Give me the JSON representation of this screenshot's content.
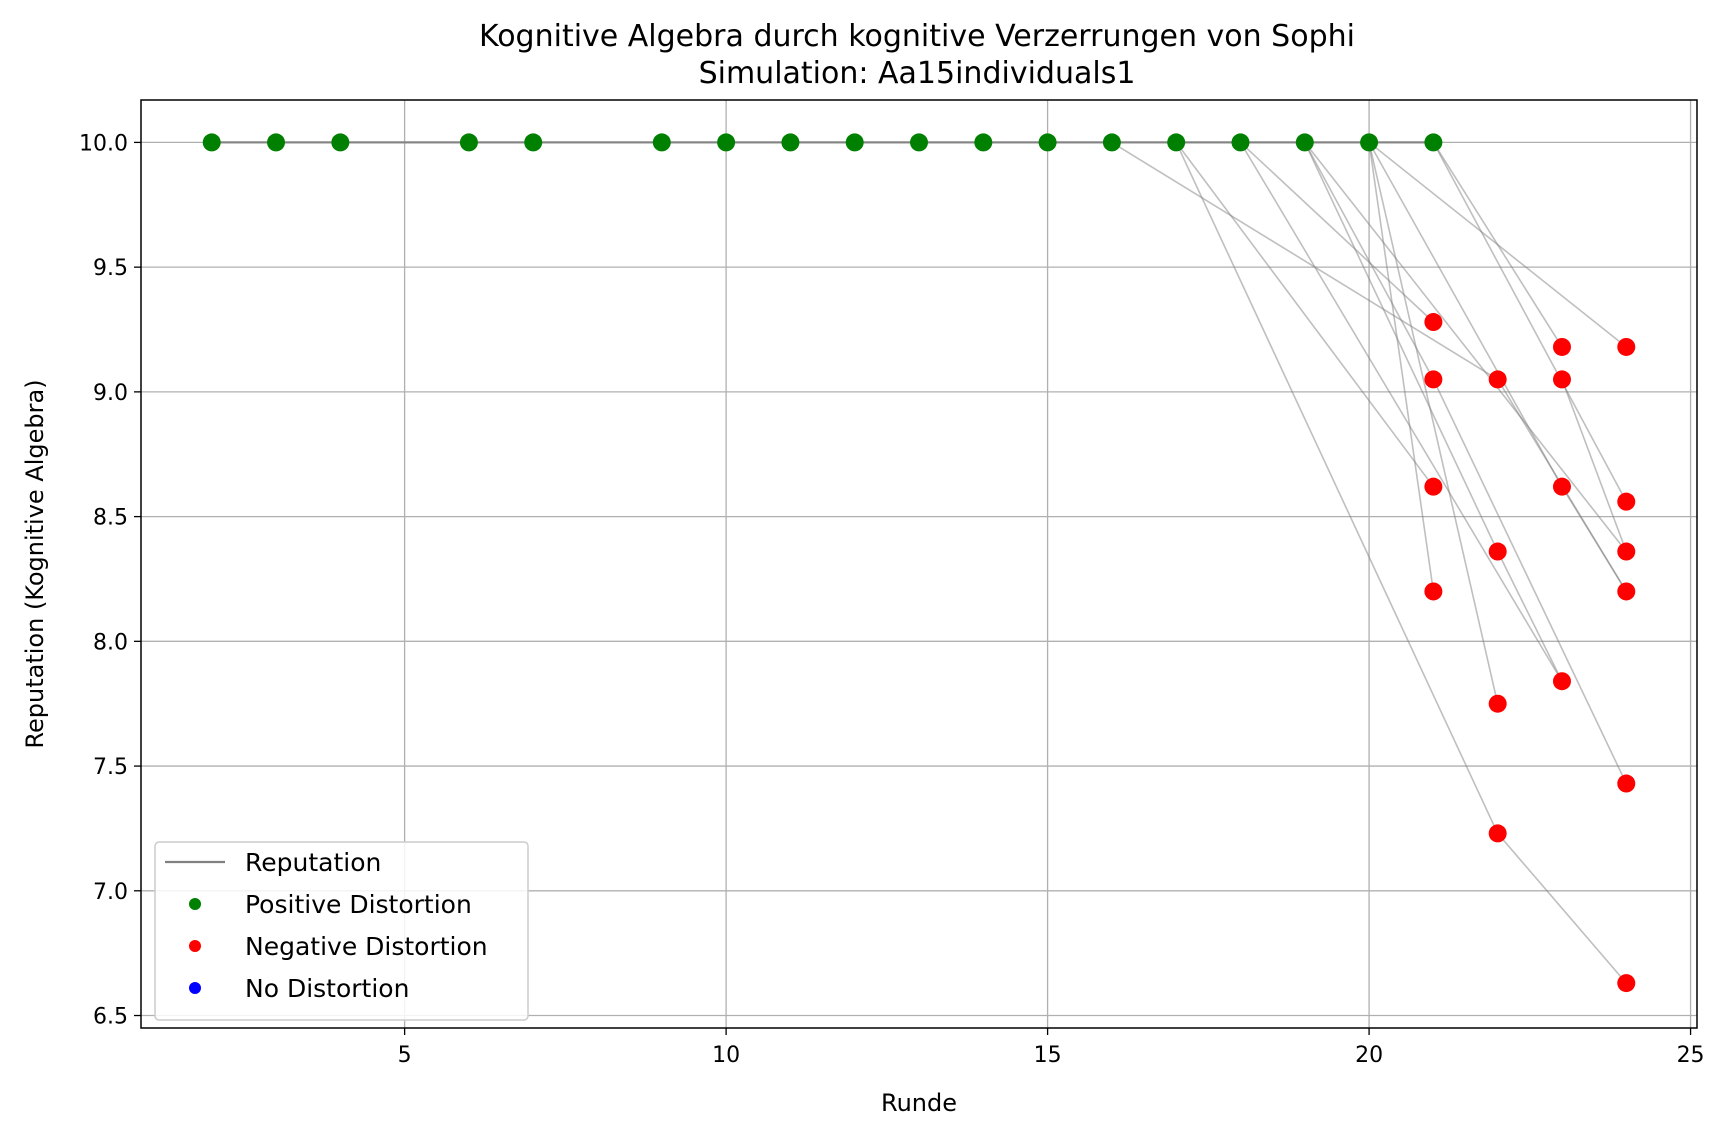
{
  "chart_data": {
    "type": "scatter",
    "title": "Kognitive Algebra durch kognitive Verzerrungen von Sophi",
    "subtitle": "Simulation: Aa15individuals1",
    "xlabel": "Runde",
    "ylabel": "Reputation (Kognitive Algebra)",
    "xlim": [
      0.9,
      25.1
    ],
    "ylim": [
      6.45,
      10.17
    ],
    "xticks": [
      5,
      10,
      15,
      20,
      25
    ],
    "yticks": [
      6.5,
      7.0,
      7.5,
      8.0,
      8.5,
      9.0,
      9.5,
      10.0
    ],
    "ytick_labels": [
      "6.5",
      "7.0",
      "7.5",
      "8.0",
      "8.5",
      "9.0",
      "9.5",
      "10.0"
    ],
    "grid": true,
    "legend_position": "lower-left",
    "legend": [
      {
        "label": "Reputation",
        "kind": "line",
        "color": "#808080"
      },
      {
        "label": "Positive Distortion",
        "kind": "marker",
        "color": "#008000"
      },
      {
        "label": "Negative Distortion",
        "kind": "marker",
        "color": "#ff0000"
      },
      {
        "label": "No Distortion",
        "kind": "marker",
        "color": "#0000ff"
      }
    ],
    "series": [
      {
        "name": "Positive Distortion",
        "color": "#008000",
        "points": [
          [
            2,
            10.0
          ],
          [
            3,
            10.0
          ],
          [
            4,
            10.0
          ],
          [
            6,
            10.0
          ],
          [
            7,
            10.0
          ],
          [
            9,
            10.0
          ],
          [
            10,
            10.0
          ],
          [
            11,
            10.0
          ],
          [
            12,
            10.0
          ],
          [
            13,
            10.0
          ],
          [
            14,
            10.0
          ],
          [
            15,
            10.0
          ],
          [
            16,
            10.0
          ],
          [
            17,
            10.0
          ],
          [
            18,
            10.0
          ],
          [
            19,
            10.0
          ],
          [
            20,
            10.0
          ],
          [
            21,
            10.0
          ]
        ]
      },
      {
        "name": "Negative Distortion",
        "color": "#ff0000",
        "points": [
          [
            21,
            9.28
          ],
          [
            21,
            9.05
          ],
          [
            21,
            8.62
          ],
          [
            21,
            8.2
          ],
          [
            22,
            9.05
          ],
          [
            22,
            8.36
          ],
          [
            22,
            7.75
          ],
          [
            22,
            7.23
          ],
          [
            23,
            9.18
          ],
          [
            23,
            9.05
          ],
          [
            23,
            8.62
          ],
          [
            23,
            7.84
          ],
          [
            24,
            9.18
          ],
          [
            24,
            8.56
          ],
          [
            24,
            8.36
          ],
          [
            24,
            8.2
          ],
          [
            24,
            7.43
          ],
          [
            24,
            6.63
          ]
        ]
      }
    ],
    "reputation_lines": [
      [
        [
          2,
          10.0
        ],
        [
          21,
          10.0
        ]
      ],
      [
        [
          16,
          10.0
        ],
        [
          22,
          9.05
        ]
      ],
      [
        [
          17,
          10.0
        ],
        [
          21,
          8.62
        ]
      ],
      [
        [
          17,
          10.0
        ],
        [
          22,
          7.23
        ]
      ],
      [
        [
          18,
          10.0
        ],
        [
          21,
          9.28
        ]
      ],
      [
        [
          18,
          10.0
        ],
        [
          23,
          7.84
        ]
      ],
      [
        [
          19,
          10.0
        ],
        [
          21,
          9.05
        ]
      ],
      [
        [
          19,
          10.0
        ],
        [
          22,
          8.36
        ]
      ],
      [
        [
          19,
          10.0
        ],
        [
          24,
          8.36
        ]
      ],
      [
        [
          20,
          10.0
        ],
        [
          21,
          8.2
        ]
      ],
      [
        [
          20,
          10.0
        ],
        [
          22,
          7.75
        ]
      ],
      [
        [
          20,
          10.0
        ],
        [
          23,
          8.62
        ]
      ],
      [
        [
          20,
          10.0
        ],
        [
          24,
          9.18
        ]
      ],
      [
        [
          21,
          10.0
        ],
        [
          23,
          9.18
        ]
      ],
      [
        [
          21,
          10.0
        ],
        [
          24,
          8.56
        ]
      ],
      [
        [
          21,
          9.05
        ],
        [
          24,
          7.43
        ]
      ],
      [
        [
          22,
          9.05
        ],
        [
          24,
          8.2
        ]
      ],
      [
        [
          22,
          8.36
        ],
        [
          23,
          7.84
        ]
      ],
      [
        [
          22,
          7.23
        ],
        [
          24,
          6.63
        ]
      ],
      [
        [
          23,
          9.05
        ],
        [
          24,
          8.36
        ]
      ],
      [
        [
          23,
          8.62
        ],
        [
          24,
          8.2
        ]
      ]
    ]
  }
}
